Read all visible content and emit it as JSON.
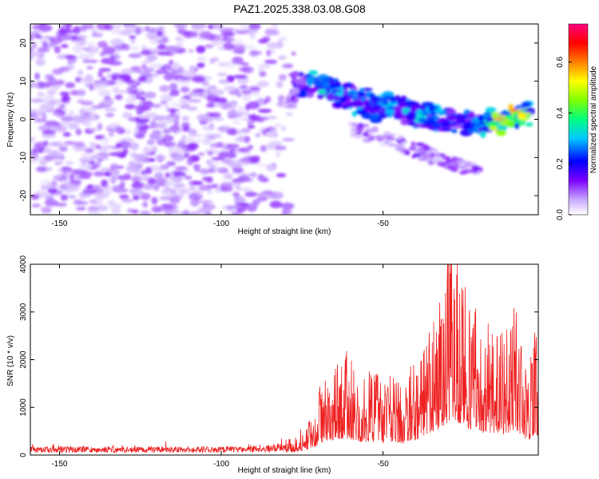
{
  "title": "PAZ1.2025.338.03.08.G08",
  "chart_data": [
    {
      "type": "heatmap",
      "xlabel": "Height of straight line (km)",
      "ylabel": "Frequency (Hz)",
      "xlim": [
        -159,
        -2
      ],
      "ylim": [
        -25,
        25
      ],
      "xticks": [
        "-150",
        "-100",
        "-50"
      ],
      "xtick_values": [
        -150,
        -100,
        -50
      ],
      "yticks": [
        "-20",
        "-10",
        "0",
        "10",
        "20"
      ],
      "ytick_values": [
        -20,
        -10,
        0,
        10,
        20
      ],
      "colorbar": {
        "label": "Normalized spectral amplitude",
        "range": [
          0.0,
          0.75
        ],
        "ticks": [
          "0.0",
          "0.2",
          "0.4",
          "0.6"
        ],
        "tick_values": [
          0.0,
          0.2,
          0.4,
          0.6
        ],
        "colors": [
          "#ffffff",
          "#c8a8ff",
          "#7b00ff",
          "#0000ff",
          "#00c8ff",
          "#00ff7f",
          "#7fff00",
          "#ffff00",
          "#ff8000",
          "#ff0000",
          "#ff0080"
        ]
      },
      "noise_region": {
        "x_range": [
          -159,
          -75
        ],
        "freq_range": [
          -25,
          25
        ],
        "typical_amplitude": [
          0.02,
          0.12
        ]
      },
      "signal_track": [
        {
          "x": -78,
          "freq": 9,
          "amplitude": 0.15
        },
        {
          "x": -70,
          "freq": 9,
          "amplitude": 0.35
        },
        {
          "x": -62,
          "freq": 6,
          "amplitude": 0.3
        },
        {
          "x": -55,
          "freq": 4,
          "amplitude": 0.3
        },
        {
          "x": -45,
          "freq": 3,
          "amplitude": 0.3
        },
        {
          "x": -38,
          "freq": 1,
          "amplitude": 0.35
        },
        {
          "x": -28,
          "freq": 0,
          "amplitude": 0.25
        },
        {
          "x": -20,
          "freq": -1,
          "amplitude": 0.3
        },
        {
          "x": -12,
          "freq": 0,
          "amplitude": 0.7
        },
        {
          "x": -4,
          "freq": 2,
          "amplitude": 0.45
        }
      ]
    },
    {
      "type": "line",
      "xlabel": "Height of straight line (km)",
      "ylabel": "SNR (10 * v/v)",
      "xlim": [
        -159,
        -2
      ],
      "ylim": [
        0,
        4000
      ],
      "xticks": [
        "-150",
        "-100",
        "-50"
      ],
      "xtick_values": [
        -150,
        -100,
        -50
      ],
      "yticks": [
        "0",
        "1000",
        "2000",
        "3000",
        "4000"
      ],
      "ytick_values": [
        0,
        1000,
        2000,
        3000,
        4000
      ],
      "line_color": "#ee2222",
      "series": [
        {
          "name": "SNR",
          "x": [
            -159,
            -150,
            -140,
            -130,
            -120,
            -110,
            -100,
            -90,
            -85,
            -80,
            -77,
            -74,
            -72,
            -70,
            -68,
            -65,
            -62,
            -60,
            -57,
            -55,
            -52,
            -50,
            -47,
            -45,
            -42,
            -40,
            -37,
            -35,
            -32,
            -30,
            -28,
            -25,
            -23,
            -21,
            -19,
            -17,
            -15,
            -13,
            -11,
            -9,
            -7,
            -5,
            -3,
            -2
          ],
          "y": [
            120,
            130,
            125,
            120,
            130,
            125,
            130,
            140,
            160,
            200,
            260,
            400,
            550,
            850,
            1100,
            1300,
            1400,
            1300,
            1100,
            1050,
            1150,
            1000,
            1100,
            950,
            1100,
            1250,
            1500,
            1900,
            2300,
            2700,
            2900,
            2450,
            2150,
            2300,
            1850,
            1650,
            1950,
            1700,
            1900,
            2150,
            1500,
            1250,
            1750,
            1500
          ]
        }
      ]
    }
  ]
}
